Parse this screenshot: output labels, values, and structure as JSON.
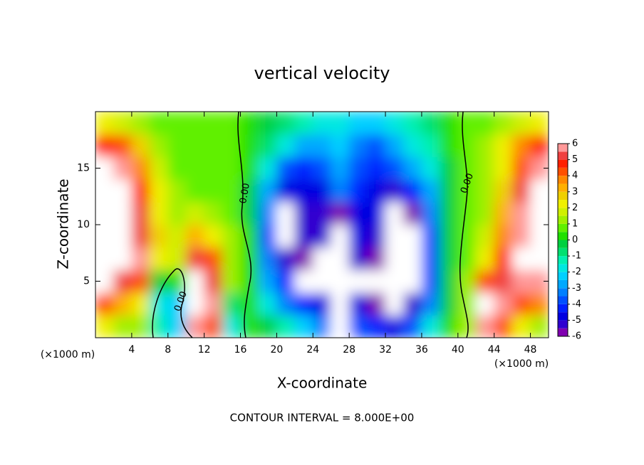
{
  "chart_data": {
    "type": "contourf",
    "title": "vertical velocity",
    "xlabel": "X-coordinate",
    "ylabel": "Z-coordinate",
    "x_unit": "(×1000 m)",
    "footer": "CONTOUR INTERVAL = 8.000E+00",
    "annotations": [
      "0.00",
      "0.00",
      "0.00"
    ],
    "xlim": [
      0,
      50
    ],
    "ylim": [
      0,
      20
    ],
    "xticks": [
      4,
      8,
      12,
      16,
      20,
      24,
      28,
      32,
      36,
      40,
      44,
      48
    ],
    "yticks": [
      5,
      10,
      15
    ],
    "x": [
      1,
      3,
      5,
      7,
      9,
      11,
      13,
      15,
      17,
      19,
      21,
      23,
      25,
      27,
      29,
      31,
      33,
      35,
      37,
      39,
      41,
      43,
      45,
      47,
      49
    ],
    "y": [
      1,
      3,
      5,
      7,
      9,
      11,
      13,
      15,
      17,
      19
    ],
    "z": [
      [
        2,
        1,
        1,
        -1.5,
        -2.5,
        6,
        4,
        -2,
        0,
        -0.5,
        -1.5,
        -2.5,
        -3.5,
        -6.5,
        -4,
        -4.5,
        -5,
        -4,
        -2,
        0,
        1,
        6,
        4,
        2,
        1
      ],
      [
        4,
        3,
        2,
        -2,
        -2.5,
        7.5,
        5.5,
        -1,
        0,
        -2,
        -3.5,
        -4.5,
        -5,
        -7,
        -5,
        -6,
        -6.5,
        -5.5,
        -3.5,
        -0.5,
        1,
        6.5,
        5.5,
        4,
        3.5
      ],
      [
        6.5,
        5,
        4,
        -0.5,
        0,
        7,
        5,
        1,
        0,
        -3,
        -4.5,
        -6.5,
        -7.5,
        -7.5,
        -6.5,
        -6.5,
        -7,
        -6.5,
        -4,
        -0.5,
        1,
        4,
        5,
        6,
        6
      ],
      [
        8,
        7,
        5.5,
        2,
        1.5,
        5,
        4,
        1,
        0,
        -3.5,
        -5.5,
        -6,
        -7,
        -7,
        -5.5,
        -6,
        -8,
        -6.5,
        -4,
        -0.5,
        0.5,
        2,
        4.5,
        6.5,
        7
      ],
      [
        9,
        7,
        5,
        2.5,
        1.5,
        3,
        2,
        1,
        0,
        -4,
        -7,
        -5.5,
        -5.5,
        -7,
        -5,
        -5.5,
        -8,
        -6.5,
        -4,
        -0.5,
        0.5,
        1.5,
        3.5,
        6,
        8
      ],
      [
        9,
        7,
        5,
        2,
        1,
        1.5,
        1,
        0.5,
        -0.5,
        -3.5,
        -6.5,
        -5.5,
        -5.5,
        -6,
        -5,
        -5,
        -7,
        -6,
        -3.5,
        -0.5,
        0.5,
        1,
        3,
        5.5,
        8
      ],
      [
        8,
        6.5,
        4.5,
        2,
        1,
        0.5,
        0.5,
        0.5,
        -0.5,
        -3,
        -5,
        -5,
        -5,
        -3.5,
        -4.5,
        -5,
        -5.5,
        -4.5,
        -3,
        -0.5,
        0.5,
        1,
        2.5,
        5,
        7
      ],
      [
        6.5,
        5.5,
        3.5,
        1.5,
        0.5,
        0.5,
        0.5,
        0.5,
        0,
        -2,
        -4,
        -4.5,
        -4,
        -3,
        -4,
        -4.5,
        -4,
        -3,
        -2,
        -0.5,
        0.5,
        1,
        2,
        4,
        6
      ],
      [
        4.5,
        4,
        2.5,
        1,
        0.5,
        0.5,
        0.5,
        0.5,
        0,
        -1,
        -2,
        -3,
        -3,
        -2.5,
        -3.5,
        -4,
        -3,
        -2,
        -1.5,
        0,
        0.5,
        1,
        2,
        3.5,
        4.5
      ],
      [
        2,
        1.5,
        1,
        0.5,
        0.5,
        0.5,
        0.5,
        0.5,
        0,
        -0.5,
        -1,
        -1.5,
        -2,
        -2,
        -2.5,
        -2.5,
        -2,
        -1.5,
        -1,
        0,
        0.5,
        0.5,
        1,
        1.5,
        2
      ]
    ],
    "clim": [
      -6,
      6
    ],
    "cticks": [
      -6,
      -5,
      -4,
      -3,
      -2,
      -1,
      0,
      1,
      2,
      3,
      4,
      5,
      6
    ],
    "colors": [
      "#8000b0",
      "#3000d0",
      "#0000e0",
      "#0020ff",
      "#0050ff",
      "#0080ff",
      "#00a8ff",
      "#00d0ff",
      "#00e8e0",
      "#00f0b0",
      "#00e070",
      "#00d040",
      "#20e000",
      "#60f000",
      "#a0f000",
      "#d0f000",
      "#f0f000",
      "#f0d000",
      "#ffb000",
      "#ff8800",
      "#ff5000",
      "#ff2000",
      "#f04040",
      "#ff9898"
    ],
    "out_of_range_color": "#ffffff"
  }
}
